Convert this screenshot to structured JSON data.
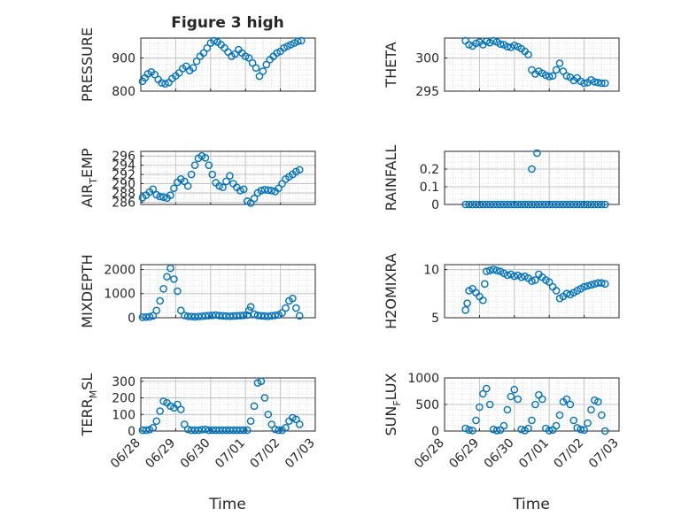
{
  "figure": {
    "title": "Figure 3 high"
  },
  "colors": {
    "marker": "#0072BD",
    "axis": "#262626",
    "grid": "#d0d0d0"
  },
  "chart_data": [
    {
      "type": "scatter",
      "id": "pressure",
      "title": "Figure 3 high",
      "ylabel": "PRESSURE",
      "ylim": [
        800,
        960
      ],
      "yticks": [
        800,
        900
      ],
      "x": [
        0.05,
        0.12,
        0.2,
        0.3,
        0.4,
        0.5,
        0.6,
        0.7,
        0.8,
        0.9,
        1.0,
        1.1,
        1.2,
        1.3,
        1.4,
        1.5,
        1.6,
        1.7,
        1.8,
        1.9,
        2.0,
        2.1,
        2.2,
        2.3,
        2.4,
        2.5,
        2.6,
        2.7,
        2.8,
        2.9,
        3.0,
        3.1,
        3.2,
        3.3,
        3.4,
        3.5,
        3.6,
        3.7,
        3.8,
        3.9,
        4.0,
        4.1,
        4.2,
        4.3,
        4.4,
        4.5,
        4.6
      ],
      "y": [
        830,
        840,
        852,
        858,
        850,
        835,
        825,
        822,
        826,
        838,
        846,
        855,
        868,
        875,
        862,
        870,
        890,
        905,
        915,
        930,
        945,
        952,
        948,
        940,
        930,
        918,
        905,
        912,
        925,
        915,
        905,
        900,
        885,
        870,
        845,
        860,
        880,
        895,
        905,
        915,
        920,
        930,
        935,
        940,
        945,
        950,
        952
      ]
    },
    {
      "type": "scatter",
      "id": "theta",
      "ylabel": "THETA",
      "ylim": [
        295,
        303
      ],
      "yticks": [
        295,
        300
      ],
      "x": [
        0.6,
        0.7,
        0.8,
        0.9,
        1.0,
        1.1,
        1.2,
        1.3,
        1.4,
        1.5,
        1.6,
        1.7,
        1.8,
        1.9,
        2.0,
        2.1,
        2.2,
        2.3,
        2.4,
        2.5,
        2.6,
        2.7,
        2.8,
        2.9,
        3.0,
        3.1,
        3.2,
        3.3,
        3.4,
        3.5,
        3.6,
        3.7,
        3.8,
        3.9,
        4.0,
        4.1,
        4.2,
        4.3,
        4.4,
        4.5,
        4.6
      ],
      "y": [
        302.6,
        302.0,
        301.8,
        302.2,
        302.4,
        302.0,
        302.5,
        302.3,
        302.6,
        302.4,
        302.1,
        302.0,
        301.7,
        301.6,
        301.9,
        301.7,
        301.4,
        301.0,
        300.5,
        298.2,
        297.6,
        298.0,
        297.7,
        297.4,
        297.2,
        297.3,
        298.2,
        299.2,
        298.0,
        297.3,
        297.1,
        296.6,
        297.0,
        296.5,
        296.2,
        296.3,
        296.7,
        296.4,
        296.3,
        296.2,
        296.2
      ]
    },
    {
      "type": "scatter",
      "id": "air_temp",
      "ylabel": "AIR",
      "ylabel_sub": "T",
      "ylabel_rest": "EMP",
      "ylim": [
        285.5,
        297
      ],
      "yticks": [
        286,
        288,
        290,
        292,
        294,
        296
      ],
      "x": [
        0.05,
        0.15,
        0.25,
        0.35,
        0.45,
        0.55,
        0.65,
        0.75,
        0.85,
        0.95,
        1.05,
        1.15,
        1.25,
        1.35,
        1.45,
        1.55,
        1.65,
        1.75,
        1.85,
        1.95,
        2.05,
        2.15,
        2.25,
        2.35,
        2.45,
        2.55,
        2.65,
        2.75,
        2.85,
        2.95,
        3.05,
        3.15,
        3.25,
        3.35,
        3.45,
        3.55,
        3.65,
        3.75,
        3.85,
        3.95,
        4.05,
        4.15,
        4.25,
        4.35,
        4.45,
        4.55
      ],
      "y": [
        287,
        287.5,
        288.2,
        288.8,
        287.6,
        287.2,
        287.1,
        286.9,
        287.5,
        289,
        290.3,
        291,
        290.5,
        289.5,
        292,
        294,
        295.5,
        296,
        295.6,
        294,
        292,
        290.2,
        289.5,
        289.2,
        290.5,
        291.7,
        290,
        289.2,
        288.5,
        288.8,
        286.2,
        285.8,
        286.8,
        288,
        288.5,
        288.7,
        288.6,
        288.5,
        288.3,
        289,
        290,
        291,
        291.5,
        292,
        292.6,
        293
      ]
    },
    {
      "type": "scatter",
      "id": "rainfall",
      "ylabel": "RAINFALL",
      "ylim": [
        0,
        0.3
      ],
      "yticks": [
        0,
        0.1,
        0.2
      ],
      "x": [
        0.6,
        0.7,
        0.8,
        0.9,
        1.0,
        1.1,
        1.2,
        1.3,
        1.4,
        1.5,
        1.6,
        1.7,
        1.8,
        1.9,
        2.0,
        2.1,
        2.2,
        2.3,
        2.4,
        2.5,
        2.6,
        2.7,
        2.8,
        2.9,
        3.0,
        3.1,
        3.2,
        3.3,
        3.4,
        3.5,
        3.6,
        3.7,
        3.8,
        3.9,
        4.0,
        4.1,
        4.2,
        4.3,
        4.4,
        4.5,
        4.6,
        2.5,
        2.65
      ],
      "y": [
        0,
        0,
        0,
        0,
        0,
        0,
        0,
        0,
        0,
        0,
        0,
        0,
        0,
        0,
        0,
        0,
        0,
        0,
        0,
        0,
        0,
        0,
        0,
        0,
        0,
        0,
        0,
        0,
        0,
        0,
        0,
        0,
        0,
        0,
        0,
        0,
        0,
        0,
        0,
        0,
        0,
        0.2,
        0.29
      ]
    },
    {
      "type": "scatter",
      "id": "mixdepth",
      "ylabel": "MIXDEPTH",
      "ylim": [
        0,
        2200
      ],
      "yticks": [
        0,
        1000,
        2000
      ],
      "x": [
        0.05,
        0.15,
        0.25,
        0.35,
        0.45,
        0.55,
        0.65,
        0.75,
        0.85,
        0.95,
        1.05,
        1.15,
        1.25,
        1.35,
        1.45,
        1.55,
        1.65,
        1.75,
        1.85,
        1.95,
        2.05,
        2.15,
        2.25,
        2.35,
        2.45,
        2.55,
        2.65,
        2.75,
        2.85,
        2.95,
        3.05,
        3.1,
        3.15,
        3.25,
        3.35,
        3.45,
        3.55,
        3.65,
        3.75,
        3.85,
        3.95,
        4.05,
        4.15,
        4.25,
        4.35,
        4.45,
        4.55
      ],
      "y": [
        20,
        30,
        40,
        80,
        300,
        700,
        1200,
        1700,
        2050,
        1600,
        1100,
        300,
        100,
        60,
        50,
        40,
        50,
        60,
        80,
        90,
        100,
        110,
        90,
        80,
        70,
        60,
        70,
        80,
        90,
        100,
        110,
        300,
        450,
        150,
        100,
        80,
        70,
        60,
        80,
        100,
        120,
        200,
        400,
        700,
        800,
        400,
        80
      ]
    },
    {
      "type": "scatter",
      "id": "h2omixra",
      "ylabel": "H2OMIXRA",
      "ylim": [
        5,
        10.5
      ],
      "yticks": [
        5,
        10
      ],
      "x": [
        0.6,
        0.65,
        0.7,
        0.8,
        0.9,
        1.0,
        1.1,
        1.15,
        1.2,
        1.3,
        1.4,
        1.5,
        1.6,
        1.7,
        1.8,
        1.9,
        2.0,
        2.1,
        2.2,
        2.3,
        2.4,
        2.5,
        2.6,
        2.7,
        2.8,
        2.9,
        3.0,
        3.1,
        3.2,
        3.3,
        3.4,
        3.5,
        3.6,
        3.7,
        3.8,
        3.9,
        4.0,
        4.1,
        4.2,
        4.3,
        4.4,
        4.5,
        4.6
      ],
      "y": [
        5.8,
        6.5,
        7.8,
        8.0,
        7.6,
        7.2,
        6.8,
        8.5,
        9.8,
        9.9,
        10.0,
        9.9,
        9.8,
        9.6,
        9.4,
        9.5,
        9.3,
        9.4,
        9.2,
        9.3,
        9.1,
        8.8,
        8.9,
        9.5,
        9.2,
        8.9,
        8.7,
        8.2,
        7.8,
        7.0,
        7.2,
        7.5,
        7.4,
        7.6,
        7.8,
        8.0,
        8.2,
        8.3,
        8.4,
        8.5,
        8.6,
        8.6,
        8.5
      ]
    },
    {
      "type": "scatter",
      "id": "terr_msl",
      "ylabel": "TERR",
      "ylabel_sub": "M",
      "ylabel_rest": "SL",
      "ylim": [
        0,
        320
      ],
      "yticks": [
        0,
        100,
        200,
        300
      ],
      "x": [
        0.05,
        0.15,
        0.25,
        0.35,
        0.45,
        0.55,
        0.65,
        0.75,
        0.85,
        0.95,
        1.05,
        1.15,
        1.25,
        1.35,
        1.45,
        1.55,
        1.65,
        1.75,
        1.85,
        1.95,
        2.05,
        2.15,
        2.25,
        2.35,
        2.45,
        2.55,
        2.65,
        2.75,
        2.85,
        2.95,
        3.05,
        3.15,
        3.25,
        3.35,
        3.45,
        3.55,
        3.65,
        3.75,
        3.85,
        3.95,
        4.05,
        4.15,
        4.25,
        4.35,
        4.45,
        4.55
      ],
      "y": [
        5,
        5,
        8,
        20,
        60,
        120,
        180,
        170,
        150,
        140,
        160,
        130,
        40,
        10,
        5,
        5,
        5,
        8,
        10,
        5,
        5,
        5,
        5,
        5,
        5,
        5,
        5,
        5,
        5,
        5,
        5,
        60,
        150,
        290,
        300,
        200,
        100,
        40,
        10,
        5,
        5,
        20,
        60,
        80,
        70,
        40
      ]
    },
    {
      "type": "scatter",
      "id": "sun_flux",
      "ylabel": "SUN",
      "ylabel_sub": "F",
      "ylabel_rest": "LUX",
      "ylim": [
        0,
        1000
      ],
      "yticks": [
        0,
        500,
        1000
      ],
      "x": [
        0.6,
        0.7,
        0.8,
        0.9,
        1.0,
        1.1,
        1.2,
        1.3,
        1.4,
        1.5,
        1.6,
        1.7,
        1.8,
        1.9,
        2.0,
        2.1,
        2.2,
        2.3,
        2.4,
        2.5,
        2.6,
        2.7,
        2.8,
        2.9,
        3.0,
        3.1,
        3.2,
        3.3,
        3.4,
        3.5,
        3.6,
        3.7,
        3.8,
        3.9,
        4.0,
        4.1,
        4.2,
        4.3,
        4.4,
        4.5,
        4.6
      ],
      "y": [
        50,
        20,
        10,
        200,
        450,
        700,
        800,
        500,
        30,
        10,
        20,
        100,
        400,
        650,
        780,
        600,
        30,
        10,
        50,
        200,
        500,
        680,
        600,
        50,
        10,
        20,
        100,
        300,
        550,
        600,
        500,
        200,
        60,
        30,
        20,
        150,
        400,
        580,
        550,
        300,
        0
      ]
    }
  ],
  "x_axis": {
    "xlim": [
      0,
      5
    ],
    "tick_labels": [
      "06/28",
      "06/29",
      "06/30",
      "07/01",
      "07/02",
      "07/03"
    ],
    "label": "Time"
  }
}
